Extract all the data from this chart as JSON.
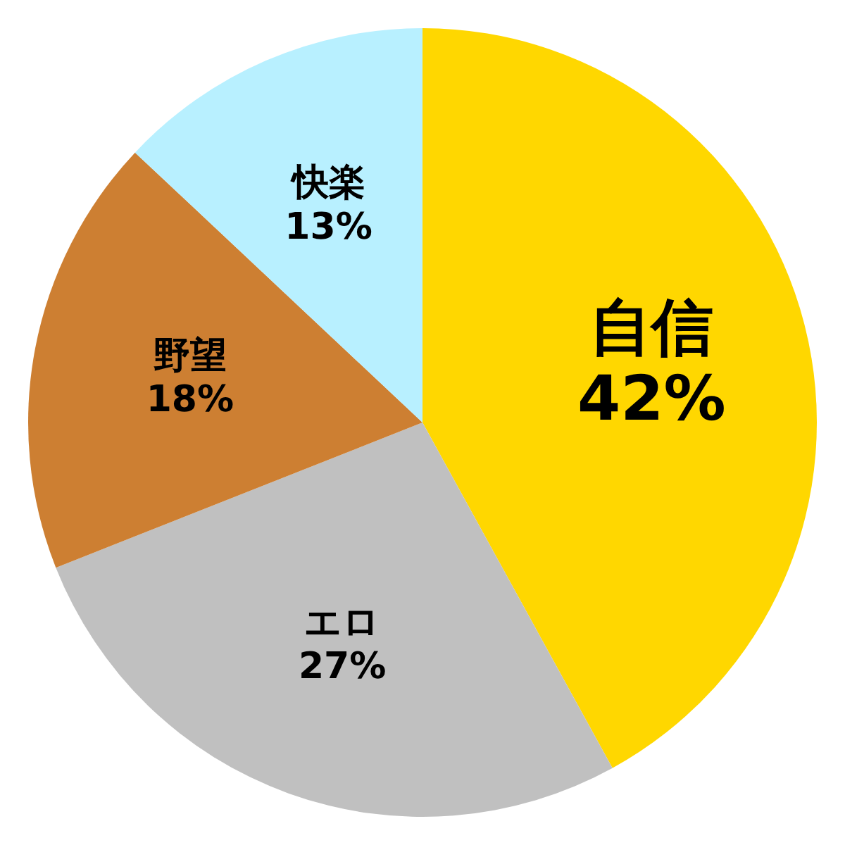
{
  "chart_data": {
    "type": "pie",
    "categories": [
      "自信",
      "エロ",
      "野望",
      "快楽"
    ],
    "values": [
      42,
      27,
      18,
      13
    ],
    "value_labels": [
      "42%",
      "27%",
      "18%",
      "13%"
    ],
    "colors": [
      "#ffd700",
      "#c0c0c0",
      "#cd7f32",
      "#b8f0ff"
    ]
  }
}
